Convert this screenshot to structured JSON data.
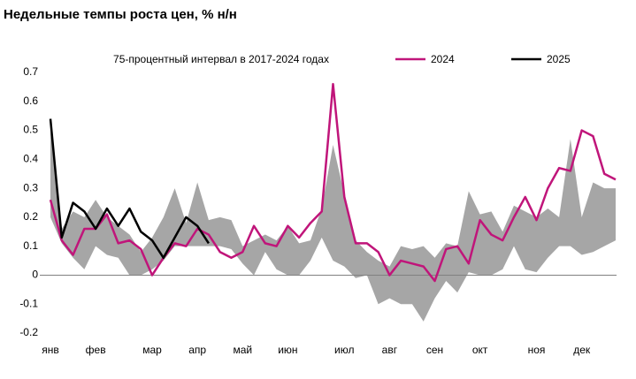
{
  "chart_data": {
    "type": "line",
    "title": "Недельные темпы роста цен, % н/н",
    "categories": [
      "янв",
      null,
      null,
      null,
      "фев",
      null,
      null,
      null,
      null,
      "мар",
      null,
      null,
      null,
      "апр",
      null,
      null,
      null,
      "май",
      null,
      null,
      null,
      "июн",
      null,
      null,
      null,
      null,
      "июл",
      null,
      null,
      null,
      "авг",
      null,
      null,
      null,
      "сен",
      null,
      null,
      null,
      "окт",
      null,
      null,
      null,
      null,
      "ноя",
      null,
      null,
      null,
      "дек",
      null,
      null,
      null
    ],
    "band": {
      "name": "75-процентный интервал в 2017-2024 годах",
      "color": "#a6a6a6",
      "lower": [
        0.2,
        0.11,
        0.06,
        0.02,
        0.1,
        0.07,
        0.06,
        0.0,
        0.0,
        0.02,
        0.05,
        0.1,
        0.1,
        0.1,
        0.1,
        0.1,
        0.09,
        0.04,
        0.0,
        0.08,
        0.02,
        0.0,
        0.0,
        0.05,
        0.13,
        0.05,
        0.03,
        -0.01,
        0.0,
        -0.1,
        -0.08,
        -0.1,
        -0.1,
        -0.16,
        -0.08,
        -0.02,
        -0.06,
        0.01,
        0.0,
        0.0,
        0.02,
        0.1,
        0.02,
        0.01,
        0.06,
        0.1,
        0.1,
        0.07,
        0.08,
        0.1,
        0.12
      ],
      "upper": [
        0.5,
        0.16,
        0.22,
        0.2,
        0.26,
        0.2,
        0.17,
        0.14,
        0.08,
        0.13,
        0.2,
        0.3,
        0.18,
        0.32,
        0.19,
        0.2,
        0.19,
        0.1,
        0.12,
        0.14,
        0.12,
        0.17,
        0.11,
        0.12,
        0.23,
        0.45,
        0.28,
        0.12,
        0.08,
        0.05,
        0.03,
        0.1,
        0.09,
        0.1,
        0.06,
        0.11,
        0.1,
        0.29,
        0.21,
        0.22,
        0.15,
        0.24,
        0.22,
        0.2,
        0.23,
        0.2,
        0.47,
        0.2,
        0.32,
        0.3,
        0.3
      ]
    },
    "series": [
      {
        "name": "2024",
        "color": "#c0157a",
        "values": [
          0.26,
          0.12,
          0.07,
          0.16,
          0.16,
          0.21,
          0.11,
          0.12,
          0.09,
          0.0,
          0.06,
          0.11,
          0.1,
          0.16,
          0.14,
          0.08,
          0.06,
          0.08,
          0.17,
          0.11,
          0.1,
          0.17,
          0.13,
          0.18,
          0.22,
          0.66,
          0.27,
          0.11,
          0.11,
          0.08,
          0.0,
          0.05,
          0.04,
          0.03,
          -0.02,
          0.09,
          0.1,
          0.04,
          0.19,
          0.14,
          0.12,
          0.2,
          0.27,
          0.19,
          0.3,
          0.37,
          0.36,
          0.5,
          0.48,
          0.35,
          0.33
        ]
      },
      {
        "name": "2025",
        "color": "#000000",
        "values": [
          0.54,
          0.13,
          0.25,
          0.22,
          0.16,
          0.23,
          0.17,
          0.23,
          0.15,
          0.12,
          0.06,
          0.13,
          0.2,
          0.17,
          0.11,
          null,
          null,
          null,
          null,
          null,
          null,
          null,
          null,
          null,
          null,
          null,
          null,
          null,
          null,
          null,
          null,
          null,
          null,
          null,
          null,
          null,
          null,
          null,
          null,
          null,
          null,
          null,
          null,
          null,
          null,
          null,
          null,
          null,
          null,
          null,
          null
        ]
      }
    ],
    "ylim": [
      -0.2,
      0.7
    ],
    "yticks": [
      -0.2,
      -0.1,
      0,
      0.1,
      0.2,
      0.3,
      0.4,
      0.5,
      0.6,
      0.7
    ]
  }
}
